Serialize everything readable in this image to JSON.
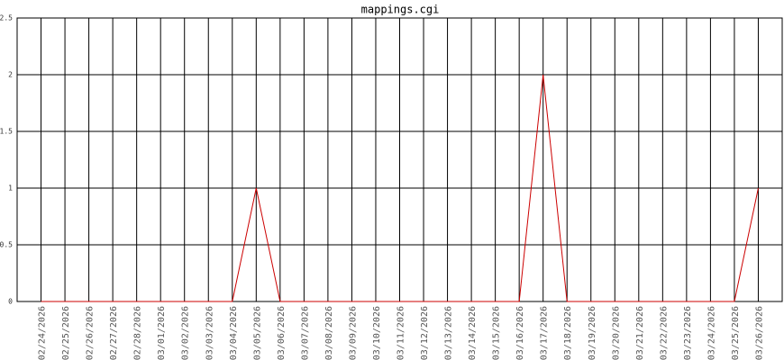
{
  "chart_data": {
    "type": "line",
    "title": "mappings.cgi",
    "categories": [
      "02/24/2026",
      "02/25/2026",
      "02/26/2026",
      "02/27/2026",
      "02/28/2026",
      "03/01/2026",
      "03/02/2026",
      "03/03/2026",
      "03/04/2026",
      "03/05/2026",
      "03/06/2026",
      "03/07/2026",
      "03/08/2026",
      "03/09/2026",
      "03/10/2026",
      "03/11/2026",
      "03/12/2026",
      "03/13/2026",
      "03/14/2026",
      "03/15/2026",
      "03/16/2026",
      "03/17/2026",
      "03/18/2026",
      "03/19/2026",
      "03/20/2026",
      "03/21/2026",
      "03/22/2026",
      "03/23/2026",
      "03/24/2026",
      "03/25/2026",
      "03/26/2026"
    ],
    "values": [
      0,
      0,
      0,
      0,
      0,
      0,
      0,
      0,
      0,
      1,
      0,
      0,
      0,
      0,
      0,
      0,
      0,
      0,
      0,
      0,
      0,
      2,
      0,
      0,
      0,
      0,
      0,
      0,
      0,
      0,
      1
    ],
    "color": "#cc0000",
    "ylim": [
      0,
      2.5
    ],
    "yticks": [
      0,
      0.5,
      1,
      1.5,
      2,
      2.5
    ],
    "grid": true
  }
}
